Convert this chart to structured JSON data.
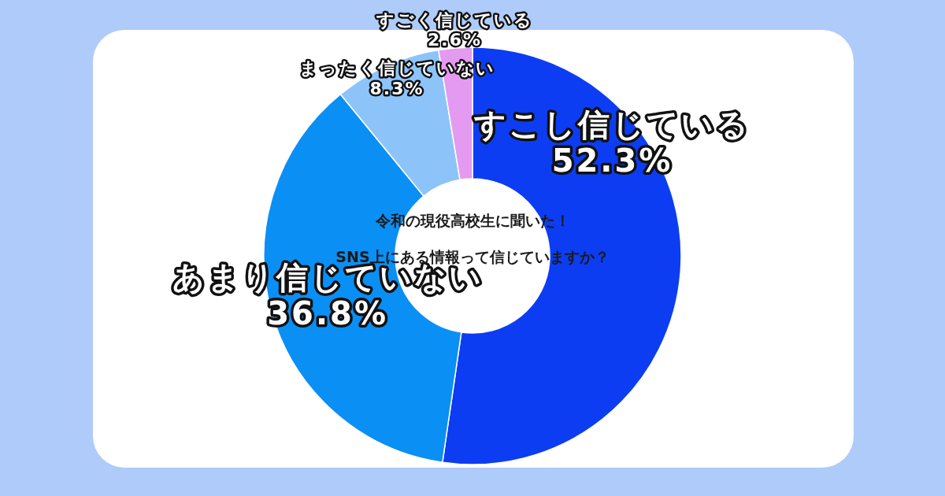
{
  "chart_data": {
    "type": "donut",
    "title": "令和の現役高校生に聞いた！",
    "subtitle": "SNS上にある情報って信じていますか？",
    "categories": [
      "すこし信じている",
      "あまり信じていない",
      "まったく信じていない",
      "すごく信じている"
    ],
    "values": [
      52.3,
      36.8,
      8.3,
      2.6
    ],
    "colors": [
      "#0d3df2",
      "#0a8ff5",
      "#8cc4fa",
      "#e39af0"
    ],
    "value_labels": [
      "52.3%",
      "36.8%",
      "8.3%",
      "2.6%"
    ]
  }
}
